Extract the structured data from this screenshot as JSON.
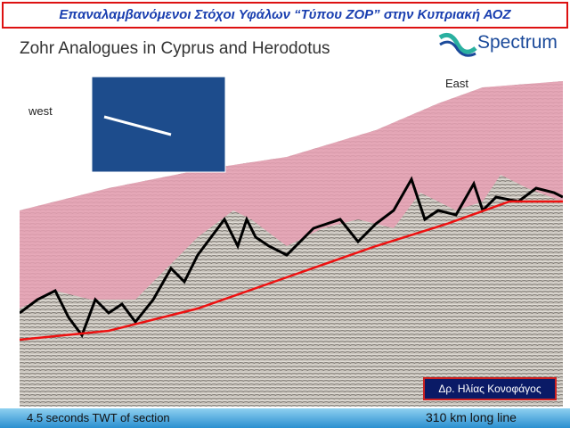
{
  "header": {
    "title": "Επαναλαμβανόμενοι Στόχοι Υφάλων “Τύπου ΖΟΡ” στην Κυπριακή ΑΟΖ"
  },
  "slide": {
    "heading": "Zohr Analogues in Cyprus and Herodotus",
    "logo": "Spectrum",
    "west_label": "west",
    "east_label": "East",
    "author": "Δρ. Ηλίας Κονοφάγος"
  },
  "footer": {
    "left": "4.5 seconds TWT  of section",
    "right": "310 km long line"
  }
}
